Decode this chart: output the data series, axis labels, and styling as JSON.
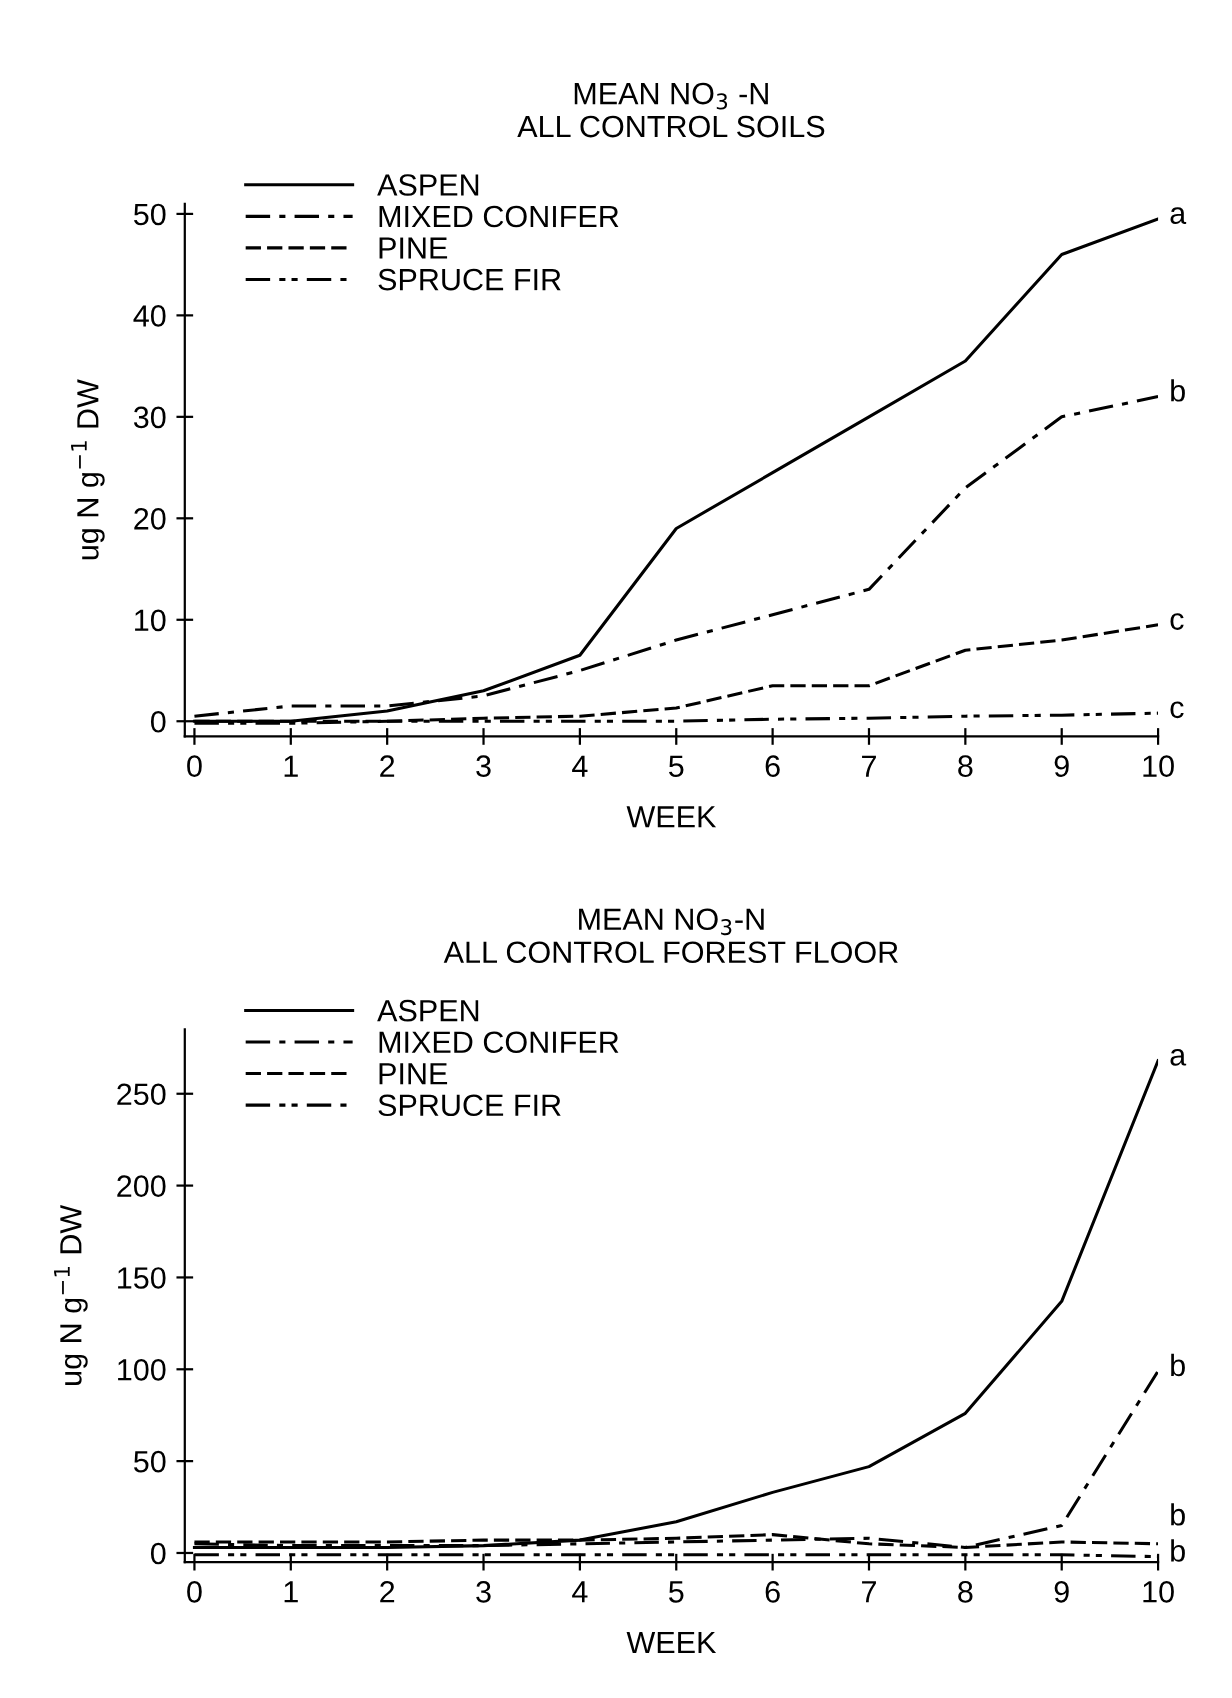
{
  "chart_data": [
    {
      "type": "line",
      "title": "MEAN NO$_{3}$ -N\nALL CONTROL SOILS",
      "xlabel": "WEEK",
      "ylabel": "ug N g$^{−1}$ DW",
      "x": [
        0,
        1,
        2,
        3,
        4,
        5,
        6,
        7,
        8,
        9,
        10
      ],
      "xlim": [
        -0.1,
        10
      ],
      "xticks": [
        0,
        1,
        2,
        3,
        4,
        5,
        6,
        7,
        8,
        9,
        10
      ],
      "ylim": [
        -1.5,
        51
      ],
      "yticks": [
        0,
        10,
        20,
        30,
        40,
        50
      ],
      "grid": false,
      "legend": "top left",
      "marker": "none",
      "series": [
        {
          "name": "ASPEN",
          "color": "#000000",
          "line_style": "solid",
          "values": [
            0,
            0,
            1,
            3,
            6.5,
            19,
            24.5,
            30,
            35.5,
            46,
            49.5
          ]
        },
        {
          "name": "MIXED CONIFER",
          "color": "#000000",
          "line_style": "dashdot",
          "values": [
            0.5,
            1.5,
            1.5,
            2.5,
            5,
            8,
            10.5,
            13,
            23,
            30,
            32
          ]
        },
        {
          "name": "PINE",
          "color": "#000000",
          "line_style": "dashed",
          "values": [
            0,
            0,
            0,
            0.3,
            0.5,
            1.3,
            3.5,
            3.5,
            7,
            8,
            9.5
          ]
        },
        {
          "name": "SPRUCE FIR",
          "color": "#000000",
          "line_style": "dashdotdot",
          "values": [
            -0.2,
            -0.2,
            0,
            0,
            0,
            0,
            0.2,
            0.3,
            0.5,
            0.6,
            0.8
          ]
        }
      ],
      "annotations": [
        "a",
        "b",
        "c",
        "c"
      ]
    },
    {
      "type": "line",
      "title": "MEAN NO$_{3}$-N\nALL CONTROL FOREST FLOOR",
      "xlabel": "WEEK",
      "ylabel": "ug N g$^{−1}$ DW",
      "x": [
        0,
        1,
        2,
        3,
        4,
        5,
        6,
        7,
        8,
        9,
        10
      ],
      "xlim": [
        -0.1,
        10
      ],
      "xticks": [
        0,
        1,
        2,
        3,
        4,
        5,
        6,
        7,
        8,
        9,
        10
      ],
      "ylim": [
        -5,
        285
      ],
      "yticks": [
        0,
        50,
        100,
        150,
        200,
        250
      ],
      "grid": false,
      "legend": "top left",
      "marker": "none",
      "series": [
        {
          "name": "ASPEN",
          "color": "#000000",
          "line_style": "solid",
          "values": [
            3,
            3,
            3,
            4,
            7,
            17,
            33,
            47,
            76,
            137,
            268
          ]
        },
        {
          "name": "MIXED CONIFER",
          "color": "#000000",
          "line_style": "dashdot",
          "values": [
            5,
            4,
            4,
            4,
            5,
            6,
            7,
            8,
            3,
            15,
            99
          ]
        },
        {
          "name": "PINE",
          "color": "#000000",
          "line_style": "dashed",
          "values": [
            6,
            6,
            6,
            7,
            7,
            8,
            10,
            5,
            3,
            6,
            5
          ]
        },
        {
          "name": "SPRUCE FIR",
          "color": "#000000",
          "line_style": "dashdotdot",
          "values": [
            -1,
            -1,
            -1,
            -1,
            -1,
            -1,
            -1,
            -1,
            -1,
            -1,
            -2
          ]
        }
      ],
      "annotations": [
        "a",
        "b",
        "b",
        "b"
      ]
    }
  ]
}
